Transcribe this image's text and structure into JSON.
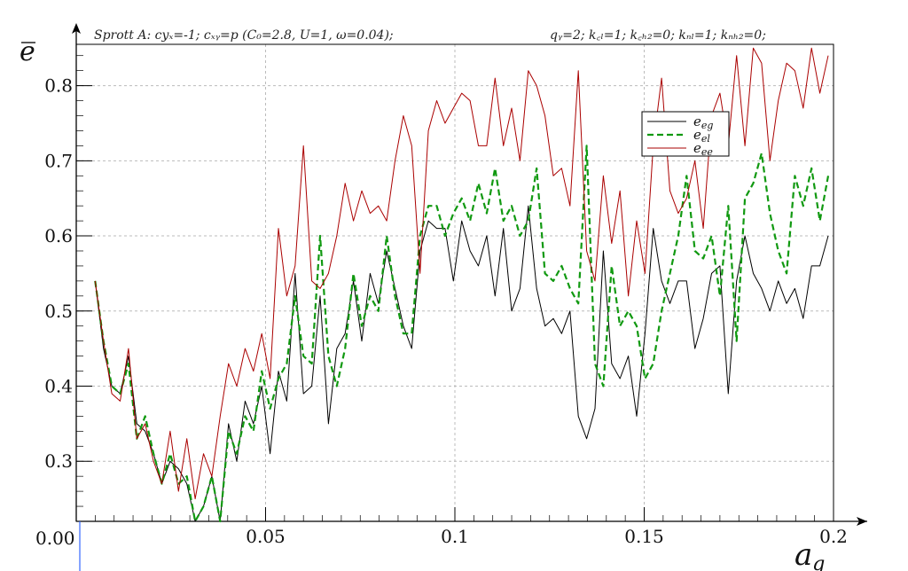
{
  "chart_data": {
    "type": "line",
    "header_left": "Sprott A: cyₓ=-1; cₓᵧ=p (C₀=2.8, U=1, ω=0.04);",
    "header_right": "qᵧ=2; k꜀ₗ=1; k꜀ₕ₂=0; kₙₗ=1; kₙₕ₂=0;",
    "xlabel": "a",
    "xlabel_sub": "g",
    "ylabel": "e",
    "xlim": [
      0,
      0.2
    ],
    "ylim": [
      0.22,
      0.855
    ],
    "x_ticks": [
      {
        "value": 0.05,
        "label": "0.05"
      },
      {
        "value": 0.1,
        "label": "0.1"
      },
      {
        "value": 0.15,
        "label": "0.15"
      },
      {
        "value": 0.2,
        "label": "0.2"
      }
    ],
    "x_origin_label": "0.00",
    "y_ticks": [
      {
        "value": 0.3,
        "label": "0.3"
      },
      {
        "value": 0.4,
        "label": "0.4"
      },
      {
        "value": 0.5,
        "label": "0.5"
      },
      {
        "value": 0.6,
        "label": "0.6"
      },
      {
        "value": 0.7,
        "label": "0.7"
      },
      {
        "value": 0.8,
        "label": "0.8"
      }
    ],
    "grid": true,
    "legend_position": "top-right",
    "x": [
      0.005,
      0.0072,
      0.0094,
      0.0116,
      0.0138,
      0.016,
      0.0182,
      0.0204,
      0.0226,
      0.0248,
      0.027,
      0.0292,
      0.0314,
      0.0336,
      0.0358,
      0.038,
      0.0402,
      0.0424,
      0.0446,
      0.0468,
      0.049,
      0.0512,
      0.0534,
      0.0556,
      0.0578,
      0.06,
      0.0622,
      0.0644,
      0.0666,
      0.0688,
      0.071,
      0.0732,
      0.0754,
      0.0776,
      0.0798,
      0.082,
      0.0842,
      0.0864,
      0.0886,
      0.0908,
      0.093,
      0.0952,
      0.0974,
      0.0996,
      0.1018,
      0.104,
      0.1062,
      0.1084,
      0.1106,
      0.1128,
      0.115,
      0.1172,
      0.1194,
      0.1216,
      0.1238,
      0.126,
      0.1282,
      0.1304,
      0.1326,
      0.1348,
      0.137,
      0.1392,
      0.1414,
      0.1436,
      0.1458,
      0.148,
      0.1502,
      0.1524,
      0.1546,
      0.1568,
      0.159,
      0.1612,
      0.1634,
      0.1656,
      0.1678,
      0.17,
      0.1722,
      0.1744,
      0.1766,
      0.1788,
      0.181,
      0.1832,
      0.1854,
      0.1876,
      0.1898,
      0.192,
      0.1942,
      0.1964,
      0.1986
    ],
    "series": [
      {
        "name": "e",
        "name_sub": "eg",
        "color": "#000000",
        "dash": "solid",
        "width": 1,
        "values": [
          0.54,
          0.45,
          0.4,
          0.39,
          0.44,
          0.35,
          0.34,
          0.31,
          0.27,
          0.3,
          0.29,
          0.27,
          0.22,
          0.24,
          0.28,
          0.22,
          0.35,
          0.3,
          0.38,
          0.35,
          0.4,
          0.31,
          0.42,
          0.38,
          0.55,
          0.39,
          0.4,
          0.52,
          0.35,
          0.45,
          0.47,
          0.54,
          0.46,
          0.55,
          0.51,
          0.58,
          0.53,
          0.48,
          0.45,
          0.58,
          0.62,
          0.61,
          0.61,
          0.54,
          0.62,
          0.58,
          0.56,
          0.6,
          0.52,
          0.61,
          0.5,
          0.53,
          0.64,
          0.53,
          0.48,
          0.49,
          0.47,
          0.5,
          0.36,
          0.33,
          0.37,
          0.58,
          0.43,
          0.41,
          0.44,
          0.36,
          0.47,
          0.61,
          0.54,
          0.51,
          0.54,
          0.54,
          0.45,
          0.49,
          0.55,
          0.56,
          0.39,
          0.54,
          0.6,
          0.55,
          0.53,
          0.5,
          0.54,
          0.51,
          0.53,
          0.49,
          0.56,
          0.56,
          0.6
        ]
      },
      {
        "name": "e",
        "name_sub": "el",
        "color": "#119911",
        "dash": "dashed",
        "width": 2.2,
        "values": [
          0.54,
          0.46,
          0.4,
          0.39,
          0.43,
          0.33,
          0.36,
          0.31,
          0.27,
          0.31,
          0.27,
          0.28,
          0.22,
          0.24,
          0.28,
          0.22,
          0.34,
          0.31,
          0.36,
          0.34,
          0.42,
          0.37,
          0.41,
          0.43,
          0.52,
          0.44,
          0.43,
          0.6,
          0.44,
          0.4,
          0.45,
          0.55,
          0.48,
          0.52,
          0.5,
          0.6,
          0.52,
          0.47,
          0.47,
          0.6,
          0.64,
          0.64,
          0.6,
          0.63,
          0.65,
          0.62,
          0.67,
          0.63,
          0.69,
          0.62,
          0.64,
          0.6,
          0.62,
          0.69,
          0.55,
          0.54,
          0.56,
          0.53,
          0.51,
          0.72,
          0.43,
          0.4,
          0.56,
          0.48,
          0.5,
          0.48,
          0.41,
          0.43,
          0.5,
          0.55,
          0.6,
          0.68,
          0.58,
          0.57,
          0.6,
          0.52,
          0.64,
          0.46,
          0.65,
          0.67,
          0.71,
          0.63,
          0.58,
          0.55,
          0.68,
          0.64,
          0.69,
          0.62,
          0.68
        ]
      },
      {
        "name": "e",
        "name_sub": "ee",
        "color": "#aa0000",
        "dash": "solid",
        "width": 1,
        "values": [
          0.54,
          0.46,
          0.39,
          0.38,
          0.45,
          0.33,
          0.35,
          0.3,
          0.27,
          0.34,
          0.26,
          0.33,
          0.25,
          0.31,
          0.28,
          0.36,
          0.43,
          0.4,
          0.45,
          0.42,
          0.47,
          0.41,
          0.61,
          0.52,
          0.56,
          0.72,
          0.54,
          0.53,
          0.55,
          0.6,
          0.67,
          0.62,
          0.66,
          0.63,
          0.64,
          0.62,
          0.7,
          0.76,
          0.72,
          0.55,
          0.74,
          0.78,
          0.75,
          0.77,
          0.79,
          0.78,
          0.72,
          0.72,
          0.81,
          0.72,
          0.77,
          0.7,
          0.82,
          0.8,
          0.76,
          0.68,
          0.69,
          0.64,
          0.82,
          0.58,
          0.54,
          0.68,
          0.59,
          0.66,
          0.52,
          0.62,
          0.55,
          0.72,
          0.81,
          0.66,
          0.63,
          0.65,
          0.7,
          0.61,
          0.76,
          0.79,
          0.72,
          0.84,
          0.72,
          0.85,
          0.83,
          0.7,
          0.78,
          0.83,
          0.82,
          0.77,
          0.85,
          0.79,
          0.84
        ]
      }
    ]
  }
}
